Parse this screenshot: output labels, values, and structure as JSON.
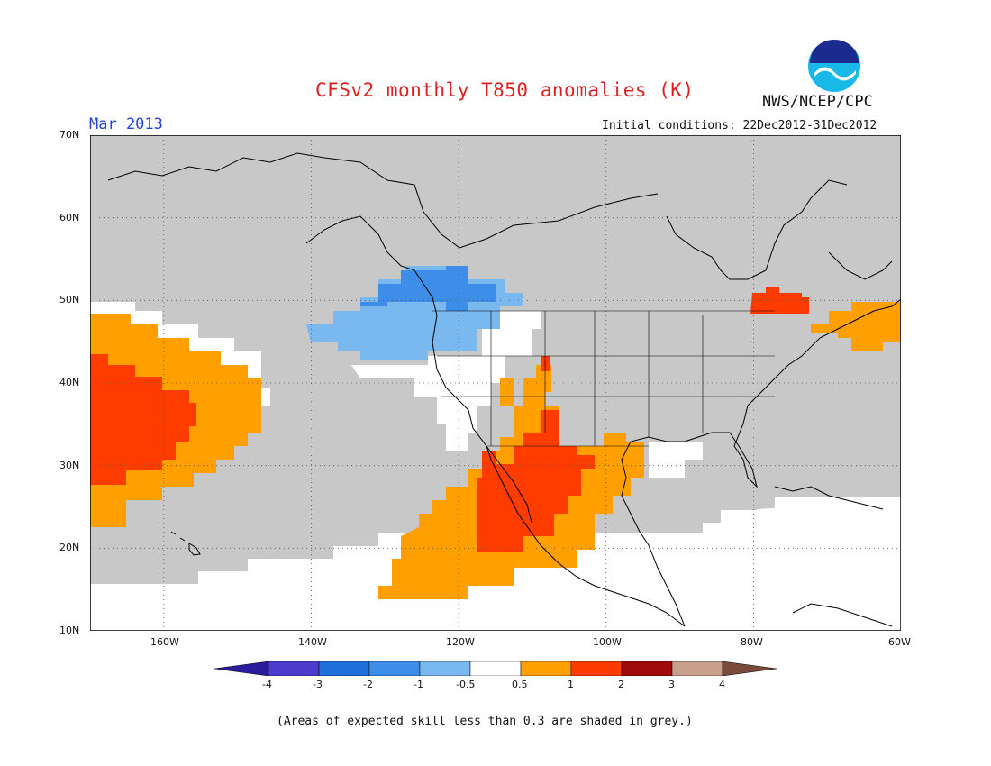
{
  "header": {
    "title": "CFSv2 monthly T850 anomalies (K)",
    "month": "Mar 2013",
    "initial_conditions": "Initial conditions: 22Dec2012-31Dec2012",
    "agency": "NWS/NCEP/CPC",
    "logo_text": "NOAA"
  },
  "map": {
    "lon_range": [
      -170,
      -60
    ],
    "lat_range": [
      10,
      70
    ],
    "lat_labels": [
      "70N",
      "60N",
      "50N",
      "40N",
      "30N",
      "20N",
      "10N"
    ],
    "lon_labels": [
      "160W",
      "140W",
      "120W",
      "100W",
      "80W",
      "60W"
    ],
    "background_low_skill_color": "#c8c8c8",
    "land_outline_color": "#000000",
    "grid": true
  },
  "colorbar": {
    "labels": [
      "-4",
      "-3",
      "-2",
      "-1",
      "-0.5",
      "0.5",
      "1",
      "2",
      "3",
      "4"
    ],
    "colors": [
      "#2a1a9c",
      "#4b3ccc",
      "#1f6fd8",
      "#3d8ee8",
      "#7ab8f0",
      "#ffffff",
      "#ffa000",
      "#ff3c00",
      "#a00a0a",
      "#c8a08c",
      "#7a4a3a"
    ]
  },
  "footer": {
    "note": "(Areas of expected skill less than 0.3 are shaded in grey.)"
  }
}
